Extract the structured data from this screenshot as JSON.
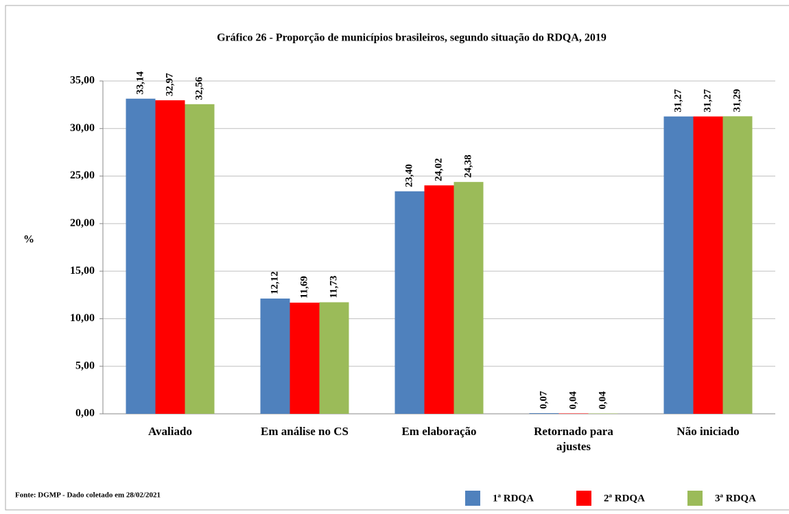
{
  "chart_data": {
    "type": "bar",
    "title": "Gráfico 26 - Proporção de municípios brasileiros,  segundo situação do RDQA, 2019",
    "ylabel": "%",
    "source": "Fonte: DGMP  - Dado  coletado  em 28/02/2021",
    "categories": [
      "Avaliado",
      "Em análise no CS",
      "Em elaboração",
      "Retornado para ajustes",
      "Não iniciado"
    ],
    "series": [
      {
        "name": "1ª RDQA",
        "color": "#4f81bd",
        "values": [
          33.14,
          12.12,
          23.4,
          0.07,
          31.27
        ],
        "value_labels": [
          "33,14",
          "12,12",
          "23,40",
          "0,07",
          "31,27"
        ]
      },
      {
        "name": "2ª RDQA",
        "color": "#ff0000",
        "values": [
          32.97,
          11.69,
          24.02,
          0.04,
          31.27
        ],
        "value_labels": [
          "32,97",
          "11,69",
          "24,02",
          "0,04",
          "31,27"
        ]
      },
      {
        "name": "3ª RDQA",
        "color": "#9bbb59",
        "values": [
          32.56,
          11.73,
          24.38,
          0.04,
          31.29
        ],
        "value_labels": [
          "32,56",
          "11,73",
          "24,38",
          "0,04",
          "31,29"
        ]
      }
    ],
    "ylim": [
      0,
      35
    ],
    "yticks": [
      {
        "value": 0,
        "label": "0,00"
      },
      {
        "value": 5,
        "label": "5,00"
      },
      {
        "value": 10,
        "label": "10,00"
      },
      {
        "value": 15,
        "label": "15,00"
      },
      {
        "value": 20,
        "label": "20,00"
      },
      {
        "value": 25,
        "label": "25,00"
      },
      {
        "value": 30,
        "label": "30,00"
      },
      {
        "value": 35,
        "label": "35,00"
      }
    ],
    "grid": true,
    "legend": "bottom-right"
  }
}
